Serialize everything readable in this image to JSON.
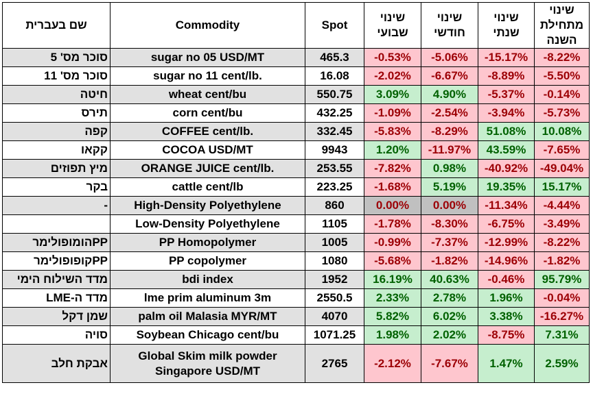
{
  "headers": {
    "hebrew_name": "שם בעברית",
    "commodity": "Commodity",
    "spot": "Spot",
    "weekly": "שינוי שבועי",
    "monthly": "שינוי חודשי",
    "yearly": "שינוי שנתי",
    "ytd": "שינוי מתחילת השנה"
  },
  "rows": [
    {
      "hebrew": "סוכר מס' 5",
      "commodity": "sugar no 05 USD/MT",
      "spot": "465.3",
      "weekly": "-0.53%",
      "monthly": "-5.06%",
      "yearly": "-15.17%",
      "ytd": "-8.22%"
    },
    {
      "hebrew": "סוכר מס' 11",
      "commodity": "sugar no 11 cent/lb.",
      "spot": "16.08",
      "weekly": "-2.02%",
      "monthly": "-6.67%",
      "yearly": "-8.89%",
      "ytd": "-5.50%"
    },
    {
      "hebrew": "חיטה",
      "commodity": "wheat cent/bu",
      "spot": "550.75",
      "weekly": "3.09%",
      "monthly": "4.90%",
      "yearly": "-5.37%",
      "ytd": "-0.14%"
    },
    {
      "hebrew": "תירס",
      "commodity": "corn cent/bu",
      "spot": "432.25",
      "weekly": "-1.09%",
      "monthly": "-2.54%",
      "yearly": "-3.94%",
      "ytd": "-5.73%"
    },
    {
      "hebrew": "קפה",
      "commodity": "COFFEE cent/lb.",
      "spot": "332.45",
      "weekly": "-5.83%",
      "monthly": "-8.29%",
      "yearly": "51.08%",
      "ytd": "10.08%"
    },
    {
      "hebrew": "קקאו",
      "commodity": "COCOA USD/MT",
      "spot": "9943",
      "weekly": "1.20%",
      "monthly": "-11.97%",
      "yearly": "43.59%",
      "ytd": "-7.65%"
    },
    {
      "hebrew": "מיץ תפוזים",
      "commodity": "ORANGE JUICE cent/lb.",
      "spot": "253.55",
      "weekly": "-7.82%",
      "monthly": "0.98%",
      "yearly": "-40.92%",
      "ytd": "-49.04%"
    },
    {
      "hebrew": "בקר",
      "commodity": "cattle cent/lb",
      "spot": "223.25",
      "weekly": "-1.68%",
      "monthly": "5.19%",
      "yearly": "19.35%",
      "ytd": "15.17%"
    },
    {
      "hebrew": "-",
      "commodity": "High-Density Polyethylene",
      "spot": "860",
      "weekly": "0.00%",
      "monthly": "0.00%",
      "yearly": "-11.34%",
      "ytd": "-4.44%"
    },
    {
      "hebrew": "",
      "commodity": "Low-Density Polyethylene",
      "spot": "1105",
      "weekly": "-1.78%",
      "monthly": "-8.30%",
      "yearly": "-6.75%",
      "ytd": "-3.49%"
    },
    {
      "hebrew": "PPהומופולימר",
      "commodity": "PP Homopolymer",
      "spot": "1005",
      "weekly": "-0.99%",
      "monthly": "-7.37%",
      "yearly": "-12.99%",
      "ytd": "-8.22%"
    },
    {
      "hebrew": "PPקופופולימר",
      "commodity": "PP copolymer",
      "spot": "1080",
      "weekly": "-5.68%",
      "monthly": "-1.82%",
      "yearly": "-14.96%",
      "ytd": "-1.82%"
    },
    {
      "hebrew": "מדד השילוח הימי",
      "commodity": "bdi index",
      "spot": "1952",
      "weekly": "16.19%",
      "monthly": "40.63%",
      "yearly": "-0.46%",
      "ytd": "95.79%"
    },
    {
      "hebrew": "מדד ה-LME",
      "commodity": "lme prim aluminum 3m",
      "spot": "2550.5",
      "weekly": "2.33%",
      "monthly": "2.78%",
      "yearly": "1.96%",
      "ytd": "-0.04%"
    },
    {
      "hebrew": "שמן דקל",
      "commodity": "palm oil Malasia MYR/MT",
      "spot": "4070",
      "weekly": "5.82%",
      "monthly": "6.02%",
      "yearly": "3.38%",
      "ytd": "-16.27%"
    },
    {
      "hebrew": "סויה",
      "commodity": "Soybean Chicago cent/bu",
      "spot": "1071.25",
      "weekly": "1.98%",
      "monthly": "2.02%",
      "yearly": "-8.75%",
      "ytd": "7.31%"
    },
    {
      "hebrew": "אבקת חלב",
      "commodity": "Global Skim milk powder Singapore USD/MT",
      "spot": "2765",
      "weekly": "-2.12%",
      "monthly": "-7.67%",
      "yearly": "1.47%",
      "ytd": "2.59%"
    }
  ],
  "colors": {
    "negative_fill": "#fec6ce",
    "negative_text": "#9c0005",
    "positive_fill": "#c6eece",
    "positive_text": "#006100",
    "zero_fill": "#c0c0c0",
    "row_shade": "#e1e1e1"
  }
}
